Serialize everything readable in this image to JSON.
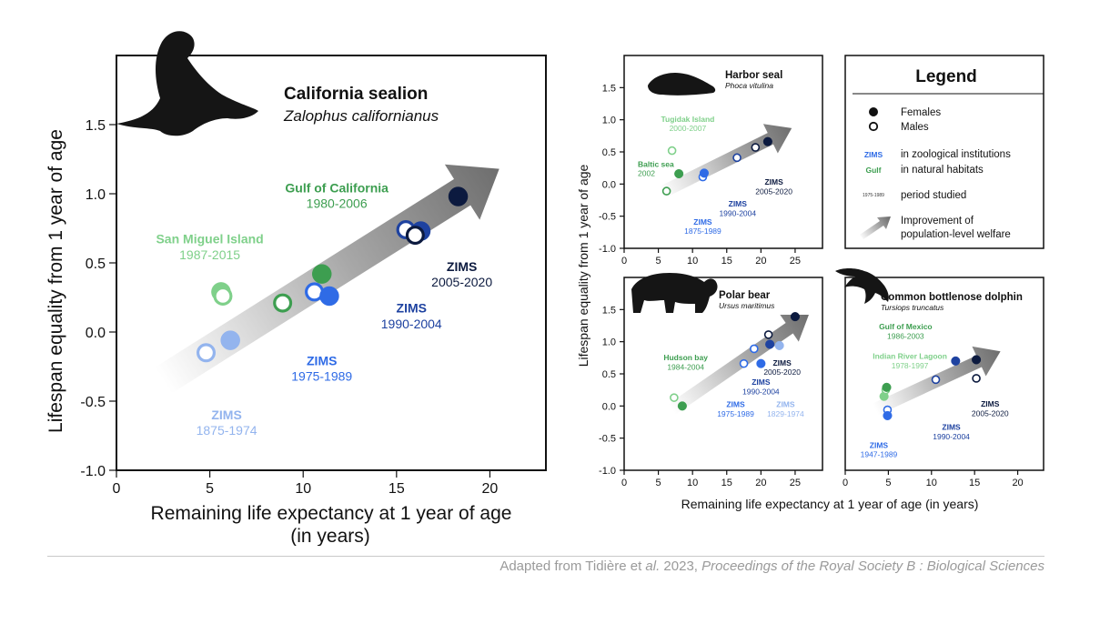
{
  "colors": {
    "zims_1875": "#93B4EE",
    "zims_1975": "#2F6BE6",
    "zims_1990": "#1E42A0",
    "zims_2005": "#0C1A3F",
    "wild_light": "#7FD08A",
    "wild_dark": "#3D9E50",
    "arrow": "#6E6E6E"
  },
  "shared_xlabel": "Remaining life expectancy at 1 year of age (in years)",
  "shared_ylabel": "Lifespan equality from 1 year of age",
  "credit": {
    "prefix": "Adapted from Tidière et ",
    "etal": "al.",
    "year": " 2023, ",
    "journal": "Proceedings of the Royal Society B : Biological Sciences"
  },
  "legend": {
    "title": "Legend",
    "females": "Females",
    "males": "Males",
    "zims_tag": "ZIMS",
    "zims_text": "in zoological institutions",
    "gulf_tag": "Gulf",
    "gulf_text": "in natural habitats",
    "period_tag": "1975-1989",
    "period_text": "period studied",
    "arrow_text_1": "Improvement of",
    "arrow_text_2": "population-level welfare"
  },
  "chart_data": [
    {
      "id": "sealion",
      "type": "scatter",
      "title": "California sealion",
      "subtitle": "Zalophus californianus",
      "xlabel_1": "Remaining life expectancy at 1 year of age",
      "xlabel_2": "(in years)",
      "ylabel": "Lifespan equality from 1 year of age",
      "xlim": [
        0,
        23
      ],
      "ylim": [
        -1.0,
        2.0
      ],
      "xticks": [
        "0",
        "5",
        "10",
        "15",
        "20"
      ],
      "yticks": [
        "-1.0",
        "-0.5",
        "0.0",
        "0.5",
        "1.0",
        "1.5"
      ],
      "arrow": {
        "from": [
          2.5,
          -0.35
        ],
        "to": [
          20.5,
          1.18
        ]
      },
      "points": [
        {
          "x": 4.8,
          "y": -0.15,
          "sex": "male",
          "color": "zims_1875"
        },
        {
          "x": 6.1,
          "y": -0.06,
          "sex": "female",
          "color": "zims_1875"
        },
        {
          "x": 5.6,
          "y": 0.29,
          "sex": "female",
          "color": "wild_light"
        },
        {
          "x": 5.7,
          "y": 0.26,
          "sex": "male",
          "color": "wild_light"
        },
        {
          "x": 8.9,
          "y": 0.21,
          "sex": "male",
          "color": "wild_dark"
        },
        {
          "x": 11.0,
          "y": 0.42,
          "sex": "female",
          "color": "wild_dark"
        },
        {
          "x": 10.6,
          "y": 0.29,
          "sex": "male",
          "color": "zims_1975"
        },
        {
          "x": 11.4,
          "y": 0.26,
          "sex": "female",
          "color": "zims_1975"
        },
        {
          "x": 15.5,
          "y": 0.74,
          "sex": "male",
          "color": "zims_1990"
        },
        {
          "x": 16.3,
          "y": 0.73,
          "sex": "female",
          "color": "zims_1990"
        },
        {
          "x": 16.0,
          "y": 0.7,
          "sex": "male",
          "color": "zims_2005"
        },
        {
          "x": 18.3,
          "y": 0.98,
          "sex": "female",
          "color": "zims_2005"
        }
      ],
      "labels": [
        {
          "name": "Gulf of California",
          "period": "1980-2006",
          "x": 11.8,
          "y": 1.01,
          "color": "wild_dark"
        },
        {
          "name": "San Miguel Island",
          "period": "1987-2015",
          "x": 5.0,
          "y": 0.64,
          "color": "wild_light"
        },
        {
          "name": "ZIMS",
          "period": "2005-2020",
          "x": 18.5,
          "y": 0.44,
          "color": "zims_2005"
        },
        {
          "name": "ZIMS",
          "period": "1990-2004",
          "x": 15.8,
          "y": 0.14,
          "color": "zims_1990"
        },
        {
          "name": "ZIMS",
          "period": "1975-1989",
          "x": 11.0,
          "y": -0.24,
          "color": "zims_1975"
        },
        {
          "name": "ZIMS",
          "period": "1875-1974",
          "x": 5.9,
          "y": -0.63,
          "color": "zims_1875"
        }
      ]
    },
    {
      "id": "harbor",
      "type": "scatter",
      "title": "Harbor seal",
      "subtitle": "Phoca vitulina",
      "xlim": [
        0,
        29
      ],
      "ylim": [
        -1.0,
        2.0
      ],
      "xticks": [
        "0",
        "5",
        "10",
        "15",
        "20",
        "25"
      ],
      "yticks": [
        "-1.0",
        "-0.5",
        "0.0",
        "0.5",
        "1.0",
        "1.5"
      ],
      "arrow": {
        "from": [
          5.5,
          -0.13
        ],
        "to": [
          24.5,
          0.87
        ]
      },
      "points": [
        {
          "x": 6.2,
          "y": -0.11,
          "sex": "male",
          "color": "wild_dark"
        },
        {
          "x": 8.0,
          "y": 0.16,
          "sex": "female",
          "color": "wild_dark"
        },
        {
          "x": 7.0,
          "y": 0.52,
          "sex": "male",
          "color": "wild_light"
        },
        {
          "x": 11.5,
          "y": 0.11,
          "sex": "male",
          "color": "zims_1975"
        },
        {
          "x": 11.7,
          "y": 0.17,
          "sex": "female",
          "color": "zims_1975"
        },
        {
          "x": 16.5,
          "y": 0.41,
          "sex": "male",
          "color": "zims_1990"
        },
        {
          "x": 19.2,
          "y": 0.57,
          "sex": "male",
          "color": "zims_2005"
        },
        {
          "x": 21.0,
          "y": 0.66,
          "sex": "female",
          "color": "zims_2005"
        }
      ],
      "labels": [
        {
          "name": "Tugidak Island",
          "period": "2000-2007",
          "x": 9.3,
          "y": 0.97,
          "color": "wild_light"
        },
        {
          "name": "Baltic sea",
          "period": "2002",
          "x": 2.0,
          "y": 0.27,
          "color": "wild_dark",
          "align": "start"
        },
        {
          "name": "ZIMS",
          "period": "2005-2020",
          "x": 21.9,
          "y": -0.01,
          "color": "zims_2005"
        },
        {
          "name": "ZIMS",
          "period": "1990-2004",
          "x": 16.6,
          "y": -0.35,
          "color": "zims_1990"
        },
        {
          "name": "ZIMS",
          "period": "1875-1989",
          "x": 11.5,
          "y": -0.63,
          "color": "zims_1975"
        }
      ]
    },
    {
      "id": "polar",
      "type": "scatter",
      "title": "Polar bear",
      "subtitle": "Ursus maritimus",
      "xlim": [
        0,
        29
      ],
      "ylim": [
        -1.0,
        2.0
      ],
      "xticks": [
        "0",
        "5",
        "10",
        "15",
        "20",
        "25"
      ],
      "yticks": [
        "-1.0",
        "-0.5",
        "0.0",
        "0.5",
        "1.0",
        "1.5"
      ],
      "arrow": {
        "from": [
          7.0,
          -0.05
        ],
        "to": [
          27.0,
          1.42
        ]
      },
      "points": [
        {
          "x": 7.3,
          "y": 0.13,
          "sex": "male",
          "color": "wild_light"
        },
        {
          "x": 8.5,
          "y": 0.0,
          "sex": "female",
          "color": "wild_dark"
        },
        {
          "x": 17.5,
          "y": 0.66,
          "sex": "male",
          "color": "zims_1975"
        },
        {
          "x": 20.0,
          "y": 0.66,
          "sex": "female",
          "color": "zims_1975"
        },
        {
          "x": 19.0,
          "y": 0.89,
          "sex": "male",
          "color": "zims_1975"
        },
        {
          "x": 21.3,
          "y": 0.96,
          "sex": "female",
          "color": "zims_1990"
        },
        {
          "x": 22.7,
          "y": 0.94,
          "sex": "female",
          "color": "zims_1875"
        },
        {
          "x": 21.1,
          "y": 1.11,
          "sex": "male",
          "color": "zims_2005"
        },
        {
          "x": 25.0,
          "y": 1.39,
          "sex": "female",
          "color": "zims_2005"
        }
      ],
      "labels": [
        {
          "name": "Hudson bay",
          "period": "1984-2004",
          "x": 9.0,
          "y": 0.71,
          "color": "wild_dark"
        },
        {
          "name": "ZIMS",
          "period": "2005-2020",
          "x": 23.1,
          "y": 0.63,
          "color": "zims_2005"
        },
        {
          "name": "ZIMS",
          "period": "1990-2004",
          "x": 20.0,
          "y": 0.33,
          "color": "zims_1990"
        },
        {
          "name": "ZIMS",
          "period": "1975-1989",
          "x": 16.3,
          "y": -0.02,
          "color": "zims_1975"
        },
        {
          "name": "ZIMS",
          "period": "1829-1974",
          "x": 23.6,
          "y": -0.02,
          "color": "zims_1875"
        }
      ]
    },
    {
      "id": "dolphin",
      "type": "scatter",
      "title": "Common bottlenose dolphin",
      "subtitle": "Tursiops truncatus",
      "xlim": [
        0,
        23
      ],
      "ylim": [
        -1.0,
        2.0
      ],
      "xticks": [
        "0",
        "5",
        "10",
        "15",
        "20"
      ],
      "yticks": [],
      "arrow": {
        "from": [
          3.5,
          -0.05
        ],
        "to": [
          18.0,
          0.85
        ]
      },
      "points": [
        {
          "x": 4.5,
          "y": 0.15,
          "sex": "female",
          "color": "wild_light"
        },
        {
          "x": 4.7,
          "y": 0.25,
          "sex": "male",
          "color": "wild_light"
        },
        {
          "x": 4.8,
          "y": 0.29,
          "sex": "female",
          "color": "wild_dark"
        },
        {
          "x": 4.9,
          "y": -0.06,
          "sex": "male",
          "color": "zims_1975"
        },
        {
          "x": 4.9,
          "y": -0.15,
          "sex": "female",
          "color": "zims_1975"
        },
        {
          "x": 10.5,
          "y": 0.41,
          "sex": "male",
          "color": "zims_1990"
        },
        {
          "x": 12.8,
          "y": 0.7,
          "sex": "female",
          "color": "zims_1990"
        },
        {
          "x": 15.2,
          "y": 0.43,
          "sex": "male",
          "color": "zims_2005"
        },
        {
          "x": 15.2,
          "y": 0.72,
          "sex": "female",
          "color": "zims_2005"
        }
      ],
      "labels": [
        {
          "name": "Gulf of Mexico",
          "period": "1986-2003",
          "x": 7.0,
          "y": 1.19,
          "color": "wild_dark"
        },
        {
          "name": "Indian River Lagoon",
          "period": "1978-1997",
          "x": 7.5,
          "y": 0.73,
          "color": "wild_light"
        },
        {
          "name": "ZIMS",
          "period": "2005-2020",
          "x": 16.8,
          "y": -0.01,
          "color": "zims_2005"
        },
        {
          "name": "ZIMS",
          "period": "1990-2004",
          "x": 12.3,
          "y": -0.37,
          "color": "zims_1990"
        },
        {
          "name": "ZIMS",
          "period": "1947-1989",
          "x": 3.9,
          "y": -0.65,
          "color": "zims_1975"
        }
      ]
    }
  ]
}
